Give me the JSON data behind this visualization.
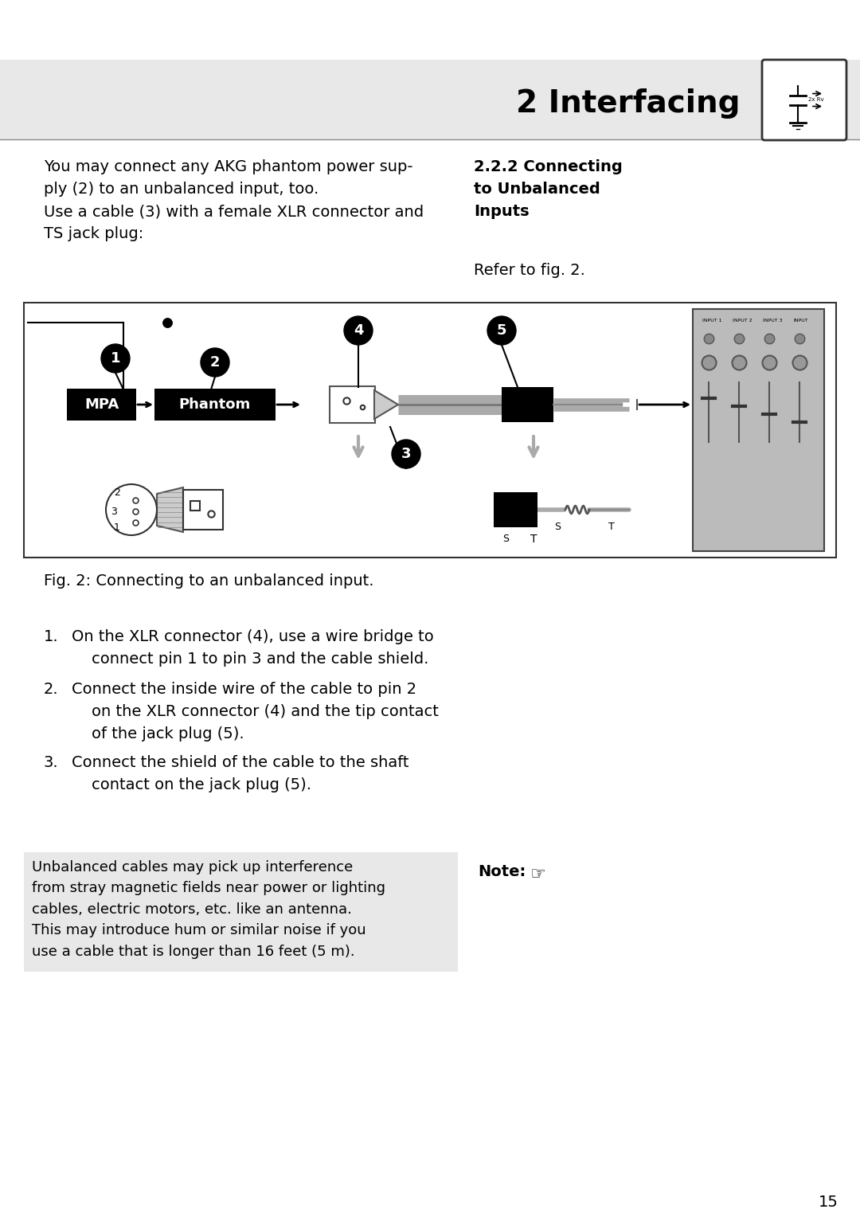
{
  "page_bg": "#ffffff",
  "header_bg": "#e8e8e8",
  "header_text": "2 Interfacing",
  "header_fontsize": 28,
  "body_left_para1": "You may connect any AKG phantom power sup-\nply (2) to an unbalanced input, too.\nUse a cable (3) with a female XLR connector and\nTS jack plug:",
  "body_right_heading": "2.2.2 Connecting\nto Unbalanced\nInputs",
  "body_right_sub": "Refer to fig. 2.",
  "fig_caption": "Fig. 2: Connecting to an unbalanced input.",
  "list_items": [
    "On the XLR connector (4), use a wire bridge to\n    connect pin 1 to pin 3 and the cable shield.",
    "Connect the inside wire of the cable to pin 2\n    on the XLR connector (4) and the tip contact\n    of the jack plug (5).",
    "Connect the shield of the cable to the shaft\n    contact on the jack plug (5)."
  ],
  "note_label": "Note:",
  "note_text": "Unbalanced cables may pick up interference\nfrom stray magnetic fields near power or lighting\ncables, electric motors, etc. like an antenna.\nThis may introduce hum or similar noise if you\nuse a cable that is longer than 16 feet (5 m).",
  "note_bg": "#e8e8e8",
  "page_number": "15",
  "font_body": 14,
  "font_list": 14
}
